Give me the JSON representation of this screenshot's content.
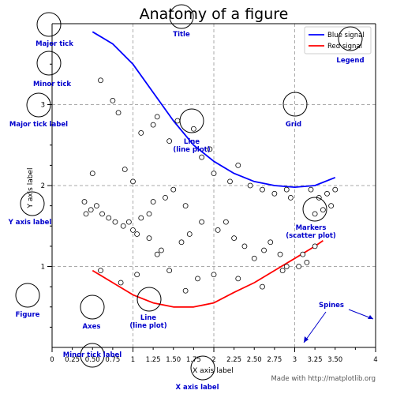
{
  "chart_data": {
    "type": "line",
    "title": "Anatomy of a figure",
    "xlabel": "X axis label",
    "ylabel": "Y axis label",
    "xlim": [
      0,
      4
    ],
    "ylim": [
      0,
      4
    ],
    "grid": true,
    "legend_position": "top-right",
    "x_major_ticks": [
      0,
      1,
      2,
      3,
      4
    ],
    "x_major_tick_labels": [
      "0",
      "1",
      "2",
      "3",
      "4"
    ],
    "x_minor_ticks": [
      0.25,
      0.5,
      0.75,
      1.25,
      1.5,
      1.75,
      2.25,
      2.5,
      2.75,
      3.25,
      3.5,
      3.75
    ],
    "x_minor_tick_labels": [
      "0.25",
      "0.50",
      "0.75",
      "1.25",
      "1.50",
      "1.75",
      "2.25",
      "2.50",
      "2.75",
      "3.25",
      "3.50",
      ""
    ],
    "y_major_ticks": [
      1,
      2,
      3
    ],
    "y_major_tick_labels": [
      "1",
      "2",
      "3"
    ],
    "colors": {
      "blue": "#0000ff",
      "red": "#ff0000",
      "annotation": "#0000cc",
      "grid": "#aaaaaa"
    },
    "series": [
      {
        "name": "Blue signal",
        "color": "#0000ff",
        "x": [
          0.5,
          0.75,
          1.0,
          1.25,
          1.5,
          1.75,
          2.0,
          2.25,
          2.5,
          2.75,
          3.0,
          3.25,
          3.5
        ],
        "y": [
          3.9,
          3.75,
          3.5,
          3.15,
          2.8,
          2.5,
          2.3,
          2.15,
          2.05,
          2.0,
          1.98,
          2.0,
          2.1
        ]
      },
      {
        "name": "Red signal",
        "color": "#ff0000",
        "x": [
          0.5,
          0.75,
          1.0,
          1.25,
          1.5,
          1.75,
          2.0,
          2.25,
          2.5,
          2.75,
          3.0,
          3.25,
          3.35
        ],
        "y": [
          0.95,
          0.8,
          0.65,
          0.55,
          0.5,
          0.5,
          0.55,
          0.68,
          0.8,
          0.95,
          1.1,
          1.25,
          1.32
        ]
      },
      {
        "name": "Markers",
        "type": "scatter",
        "x": [
          0.6,
          0.75,
          0.82,
          0.5,
          1.0,
          0.9,
          0.55,
          0.4,
          0.48,
          0.42,
          1.25,
          1.3,
          1.1,
          1.45,
          1.55,
          1.75,
          1.95,
          2.0,
          1.85,
          2.3,
          2.2,
          2.45,
          2.6,
          2.75,
          2.9,
          2.95,
          1.5,
          1.65,
          1.4,
          1.25,
          1.2,
          1.1,
          0.95,
          0.88,
          0.78,
          0.7,
          0.62,
          1.0,
          1.05,
          1.2,
          1.35,
          1.6,
          1.7,
          1.85,
          2.05,
          2.15,
          2.25,
          2.38,
          2.5,
          2.62,
          2.7,
          2.82,
          2.9,
          3.05,
          3.15,
          3.25,
          3.35,
          3.45,
          3.5,
          3.3,
          3.2,
          3.4,
          0.6,
          0.85,
          1.05,
          1.3,
          1.45,
          1.65,
          1.8,
          2.0,
          2.3,
          2.6,
          2.85,
          3.1,
          3.25
        ],
        "y": [
          3.3,
          3.05,
          2.9,
          2.15,
          2.05,
          2.2,
          1.75,
          1.8,
          1.7,
          1.65,
          2.75,
          2.85,
          2.65,
          2.55,
          2.8,
          2.7,
          2.45,
          2.15,
          2.35,
          2.25,
          2.05,
          2.0,
          1.95,
          1.9,
          1.95,
          1.85,
          1.95,
          1.75,
          1.85,
          1.8,
          1.65,
          1.6,
          1.55,
          1.5,
          1.55,
          1.6,
          1.65,
          1.45,
          1.4,
          1.35,
          1.2,
          1.3,
          1.4,
          1.55,
          1.45,
          1.55,
          1.35,
          1.25,
          1.1,
          1.2,
          1.3,
          1.15,
          1.0,
          1.0,
          1.05,
          1.65,
          1.7,
          1.75,
          1.95,
          1.85,
          1.95,
          1.9,
          0.95,
          0.8,
          0.9,
          1.15,
          0.95,
          0.7,
          0.85,
          0.9,
          0.85,
          0.75,
          0.95,
          1.15,
          1.25
        ]
      }
    ],
    "annotations": [
      {
        "key": "major_tick",
        "text": "Major tick"
      },
      {
        "key": "minor_tick",
        "text": "Minor tick"
      },
      {
        "key": "major_tick_label",
        "text": "Major tick label"
      },
      {
        "key": "y_axis_label",
        "text": "Y axis label"
      },
      {
        "key": "figure",
        "text": "Figure"
      },
      {
        "key": "axes",
        "text": "Axes"
      },
      {
        "key": "title",
        "text": "Title"
      },
      {
        "key": "line_top",
        "text": "Line\n(line plot)"
      },
      {
        "key": "grid",
        "text": "Grid"
      },
      {
        "key": "legend",
        "text": "Legend"
      },
      {
        "key": "markers",
        "text": "Markers\n(scatter plot)"
      },
      {
        "key": "line_bottom",
        "text": "Line\n(line plot)"
      },
      {
        "key": "spines",
        "text": "Spines"
      },
      {
        "key": "minor_tick_label",
        "text": "Minor tick label"
      },
      {
        "key": "x_axis_label",
        "text": "X axis label"
      }
    ],
    "credit": "Made with http://matplotlib.org"
  }
}
